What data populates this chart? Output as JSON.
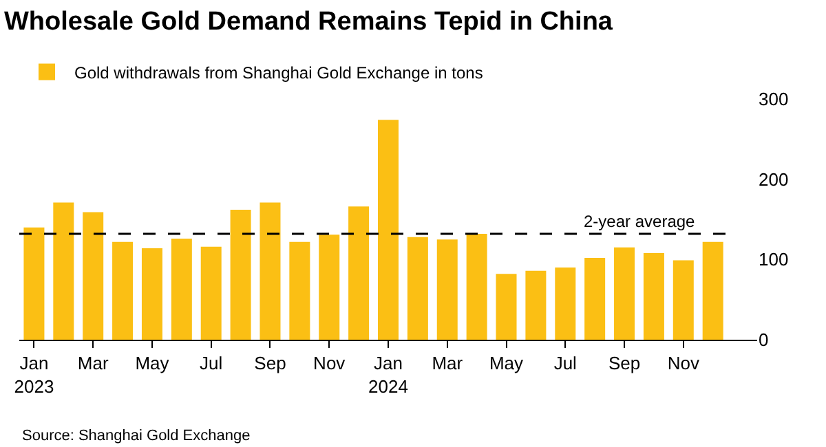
{
  "chart_data": {
    "type": "bar",
    "title": "Wholesale Gold Demand Remains Tepid in China",
    "categories": [
      "Jan\n2023",
      null,
      "Mar",
      null,
      "May",
      null,
      "Jul",
      null,
      "Sep",
      null,
      "Nov",
      null,
      "Jan\n2024",
      null,
      "Mar",
      null,
      "May",
      null,
      "Jul",
      null,
      "Sep",
      null,
      "Nov",
      null
    ],
    "series": [
      {
        "name": "Gold withdrawals from Shanghai Gold Exchange in tons",
        "color": "#fbbf14",
        "values": [
          140,
          171,
          159,
          122,
          114,
          126,
          116,
          162,
          171,
          122,
          131,
          166,
          274,
          128,
          125,
          132,
          82,
          86,
          90,
          102,
          115,
          108,
          99,
          122
        ]
      }
    ],
    "ylim": [
      0,
      300
    ],
    "yticks": [
      0,
      100,
      200,
      300
    ],
    "legend": "top left",
    "ref_lines": [
      {
        "axis": "y",
        "value": 132,
        "label": "2-year average",
        "color": "#000000",
        "line_style": "dashed"
      }
    ],
    "annotations": [
      "Source: Shanghai Gold Exchange"
    ]
  }
}
